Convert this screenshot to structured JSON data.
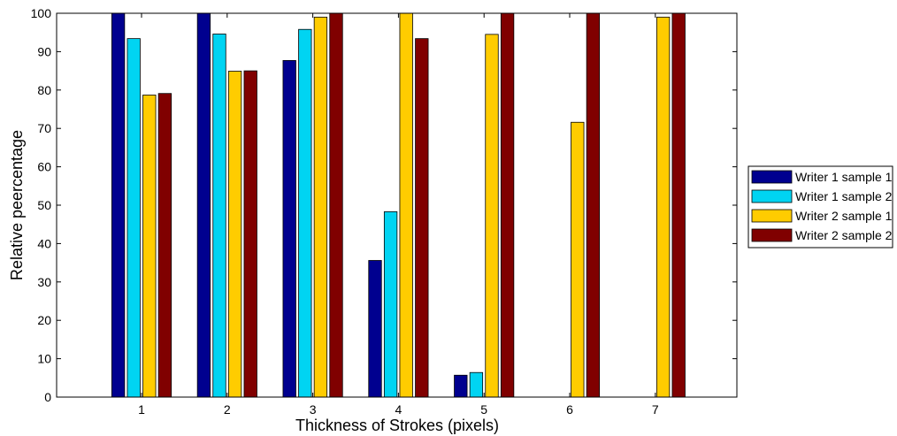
{
  "chart_data": {
    "type": "bar",
    "categories": [
      "1",
      "2",
      "3",
      "4",
      "5",
      "6",
      "7"
    ],
    "xlabel": "Thickness of Strokes (pixels)",
    "ylabel": "Relative peercentage",
    "ylim": [
      0,
      100
    ],
    "yticks": [
      0,
      10,
      20,
      30,
      40,
      50,
      60,
      70,
      80,
      90,
      100
    ],
    "grid": false,
    "legend_position": "right",
    "series": [
      {
        "name": "Writer 1 sample 1",
        "color": "#00008f",
        "values": [
          100,
          100,
          87.7,
          35.6,
          5.7,
          0,
          0
        ]
      },
      {
        "name": "Writer 1 sample 2",
        "color": "#00d4f2",
        "values": [
          93.4,
          94.6,
          95.8,
          48.3,
          6.4,
          0,
          0
        ]
      },
      {
        "name": "Writer 2 sample 1",
        "color": "#ffcc00",
        "values": [
          78.7,
          84.9,
          99.0,
          100,
          94.5,
          71.6,
          99.0
        ]
      },
      {
        "name": "Writer 2 sample 2",
        "color": "#800000",
        "values": [
          79.1,
          85.0,
          100,
          93.4,
          100,
          100,
          100
        ]
      }
    ]
  }
}
